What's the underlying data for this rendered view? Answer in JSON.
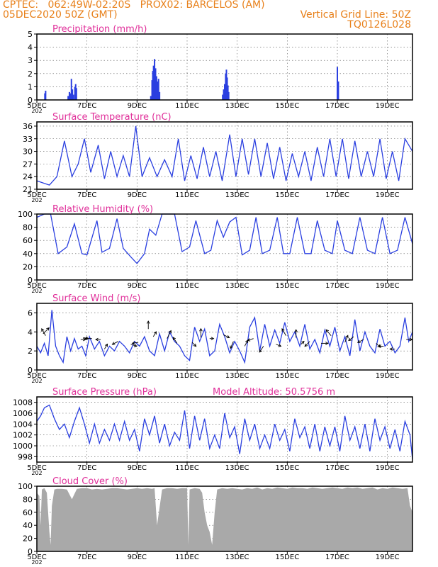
{
  "header": {
    "line1_left": "CPTEC:   062:49W-02:20S   PROX02: BARCELOS (AM)",
    "line2_left": "05DEC2020 50Z (GMT)",
    "line2_right": "Vertical Grid Line: 50Z",
    "line3_right": "TQ0126L028"
  },
  "colors": {
    "header": "#e8801a",
    "title": "#e0309a",
    "line": "#2a3fe0",
    "cloud": "#a9a9a9"
  },
  "x_axis": {
    "start_day": 5,
    "end_day": 20,
    "tick_days": [
      5,
      7,
      9,
      11,
      13,
      15,
      17,
      19
    ],
    "tick_labels": [
      "5DEC",
      "7DEC",
      "9DEC",
      "11DEC",
      "13DEC",
      "15DEC",
      "17DEC",
      "19DEC"
    ],
    "year_fragment": "202"
  },
  "chart_data": [
    {
      "id": "precip",
      "type": "bar",
      "title": "Precipitation (mm/h)",
      "ylim": [
        0,
        5
      ],
      "yticks": [
        0,
        1,
        2,
        3,
        4,
        5
      ],
      "ytick_labels": [
        "0",
        "1",
        "2",
        "3",
        "4",
        "5"
      ],
      "bars": [
        [
          5.32,
          0.5
        ],
        [
          5.35,
          0.7
        ],
        [
          6.25,
          0.3
        ],
        [
          6.3,
          0.6
        ],
        [
          6.35,
          0.5
        ],
        [
          6.38,
          1.6
        ],
        [
          6.42,
          0.8
        ],
        [
          6.46,
          0.4
        ],
        [
          6.52,
          1.0
        ],
        [
          6.55,
          1.2
        ],
        [
          6.58,
          0.9
        ],
        [
          9.55,
          0.3
        ],
        [
          9.6,
          1.5
        ],
        [
          9.63,
          2.2
        ],
        [
          9.66,
          2.6
        ],
        [
          9.7,
          3.1
        ],
        [
          9.74,
          2.4
        ],
        [
          9.78,
          1.8
        ],
        [
          9.82,
          1.4
        ],
        [
          9.86,
          1.6
        ],
        [
          9.9,
          0.6
        ],
        [
          12.42,
          0.4
        ],
        [
          12.46,
          0.8
        ],
        [
          12.5,
          1.2
        ],
        [
          12.54,
          2.0
        ],
        [
          12.57,
          2.3
        ],
        [
          12.6,
          1.7
        ],
        [
          12.63,
          1.1
        ],
        [
          12.66,
          0.6
        ],
        [
          17.0,
          2.5
        ],
        [
          17.04,
          1.4
        ]
      ]
    },
    {
      "id": "temp",
      "type": "line",
      "title": "Surface Temperature (nC)",
      "ylim": [
        21,
        37
      ],
      "yticks": [
        21,
        24,
        27,
        30,
        33,
        36
      ],
      "ytick_labels": [
        "21",
        "24",
        "27",
        "30",
        "33",
        "36"
      ],
      "x": [
        5,
        5.25,
        5.5,
        5.8,
        6.1,
        6.4,
        6.65,
        6.9,
        7.15,
        7.45,
        7.7,
        7.95,
        8.2,
        8.45,
        8.7,
        8.95,
        9.2,
        9.5,
        9.8,
        10.1,
        10.4,
        10.65,
        10.9,
        11.15,
        11.4,
        11.65,
        11.9,
        12.15,
        12.4,
        12.7,
        12.95,
        13.2,
        13.45,
        13.7,
        13.95,
        14.2,
        14.45,
        14.7,
        14.95,
        15.2,
        15.45,
        15.7,
        15.95,
        16.2,
        16.45,
        16.7,
        16.95,
        17.2,
        17.45,
        17.7,
        17.95,
        18.2,
        18.45,
        18.7,
        18.95,
        19.2,
        19.45,
        19.7,
        20
      ],
      "values": [
        23,
        22.5,
        22,
        24,
        32.5,
        24,
        27,
        33,
        25,
        31.5,
        23.5,
        30,
        24,
        29,
        24,
        36,
        24,
        28.5,
        24,
        28,
        24,
        33,
        23,
        29,
        23.5,
        31,
        24,
        30,
        23,
        34,
        24,
        33,
        24.5,
        33,
        24,
        32,
        23.5,
        31,
        23,
        29.5,
        24,
        30,
        23,
        31,
        24,
        33,
        24,
        33,
        23.5,
        32.5,
        24,
        30,
        24,
        33,
        23.5,
        30,
        23,
        33,
        30
      ]
    },
    {
      "id": "rh",
      "type": "line",
      "title": "Relative Humidity (%)",
      "ylim": [
        0,
        100
      ],
      "yticks": [
        0,
        20,
        40,
        60,
        80,
        100
      ],
      "ytick_labels": [
        "0",
        "20",
        "40",
        "60",
        "80",
        "100"
      ],
      "x": [
        5,
        5.3,
        5.55,
        5.85,
        6.2,
        6.5,
        6.8,
        7.0,
        7.4,
        7.6,
        7.9,
        8.2,
        8.45,
        8.75,
        9.0,
        9.3,
        9.5,
        9.75,
        10.0,
        10.25,
        10.5,
        10.8,
        11.1,
        11.35,
        11.7,
        11.95,
        12.2,
        12.45,
        12.7,
        12.95,
        13.2,
        13.5,
        13.75,
        14.0,
        14.3,
        14.6,
        14.85,
        15.1,
        15.4,
        15.7,
        15.95,
        16.2,
        16.5,
        16.8,
        17.0,
        17.3,
        17.6,
        17.9,
        18.2,
        18.5,
        18.8,
        19.1,
        19.4,
        19.7,
        20
      ],
      "values": [
        95,
        100,
        100,
        40,
        50,
        85,
        40,
        38,
        90,
        42,
        48,
        93,
        48,
        35,
        25,
        40,
        77,
        68,
        100,
        100,
        100,
        43,
        50,
        90,
        40,
        45,
        90,
        65,
        88,
        95,
        38,
        45,
        95,
        40,
        45,
        95,
        40,
        40,
        95,
        40,
        40,
        90,
        45,
        40,
        90,
        45,
        40,
        95,
        45,
        40,
        95,
        40,
        45,
        95,
        55
      ]
    },
    {
      "id": "wind",
      "type": "line",
      "title": "Surface Wind (m/s)",
      "ylim": [
        0,
        7
      ],
      "yticks": [
        0,
        2,
        4,
        6
      ],
      "ytick_labels": [
        "0",
        "2",
        "4",
        "6"
      ],
      "x": [
        5,
        5.15,
        5.3,
        5.45,
        5.6,
        5.75,
        5.9,
        6.05,
        6.2,
        6.35,
        6.5,
        6.65,
        6.8,
        6.95,
        7.1,
        7.3,
        7.5,
        7.7,
        7.9,
        8.1,
        8.3,
        8.5,
        8.7,
        8.9,
        9.1,
        9.3,
        9.5,
        9.7,
        9.9,
        10.1,
        10.3,
        10.5,
        10.7,
        10.9,
        11.1,
        11.3,
        11.5,
        11.7,
        11.9,
        12.1,
        12.3,
        12.5,
        12.7,
        12.9,
        13.1,
        13.3,
        13.5,
        13.7,
        13.9,
        14.1,
        14.3,
        14.5,
        14.7,
        14.9,
        15.1,
        15.3,
        15.5,
        15.7,
        15.9,
        16.1,
        16.3,
        16.5,
        16.7,
        16.9,
        17.1,
        17.3,
        17.5,
        17.7,
        17.9,
        18.1,
        18.3,
        18.5,
        18.7,
        18.9,
        19.1,
        19.3,
        19.5,
        19.7,
        19.85,
        20
      ],
      "values": [
        2.5,
        1.8,
        2.8,
        1.5,
        6.3,
        2.5,
        1.5,
        0.8,
        3.5,
        2.0,
        3.3,
        2.2,
        2.5,
        1.5,
        3.5,
        2.2,
        3.0,
        1.5,
        2.5,
        2.0,
        3.0,
        2.5,
        1.8,
        3.0,
        2.5,
        3.5,
        2.0,
        1.5,
        3.8,
        2.0,
        4.0,
        3.0,
        2.5,
        1.5,
        1.0,
        4.5,
        3.0,
        4.3,
        1.5,
        2.0,
        4.8,
        3.5,
        1.8,
        3.0,
        2.0,
        0.8,
        4.5,
        5.5,
        2.0,
        4.8,
        2.5,
        4.2,
        2.8,
        5.0,
        3.0,
        4.0,
        2.5,
        4.8,
        2.2,
        3.2,
        1.8,
        4.2,
        2.5,
        4.5,
        2.0,
        3.5,
        1.5,
        5.3,
        2.0,
        4.0,
        2.5,
        1.8,
        4.3,
        2.5,
        3.0,
        1.8,
        2.5,
        5.5,
        3.0,
        4.0
      ],
      "arrows": [
        [
          5.25,
          3.8,
          0.6,
          -0.6
        ],
        [
          5.35,
          3.6,
          -0.4,
          -0.7
        ],
        [
          6.75,
          3.2,
          0.5,
          0
        ],
        [
          6.85,
          3.4,
          0.5,
          0.1
        ],
        [
          7.2,
          3.3,
          -0.7,
          0
        ],
        [
          7.55,
          3.2,
          -0.5,
          0
        ],
        [
          7.7,
          2.2,
          0.3,
          -0.5
        ],
        [
          8.25,
          3.0,
          -0.6,
          0.3
        ],
        [
          8.75,
          2.7,
          0.6,
          0.2
        ],
        [
          9.05,
          2.9,
          -0.6,
          0.1
        ],
        [
          9.45,
          4.3,
          0,
          -0.8
        ],
        [
          9.65,
          3.5,
          0.3,
          -0.5
        ],
        [
          10.2,
          3.3,
          0.4,
          -0.8
        ],
        [
          10.6,
          2.8,
          -0.4,
          -0.6
        ],
        [
          11.2,
          2.9,
          0.4,
          0.4
        ],
        [
          11.55,
          3.4,
          0,
          -0.9
        ],
        [
          11.9,
          3.3,
          0.4,
          0
        ],
        [
          12.45,
          3.7,
          0.6,
          0.3
        ],
        [
          12.85,
          3.0,
          -0.3,
          0.7
        ],
        [
          13.3,
          2.5,
          0.3,
          -0.6
        ],
        [
          13.65,
          3.3,
          -0.6,
          0.2
        ],
        [
          14.05,
          2.5,
          -0.4,
          0.6
        ],
        [
          14.55,
          2.7,
          0.5,
          0.2
        ],
        [
          14.95,
          3.6,
          -0.4,
          -0.7
        ],
        [
          15.35,
          3.4,
          0,
          -0.8
        ],
        [
          15.55,
          2.7,
          0.3,
          -0.3
        ],
        [
          15.9,
          3.0,
          -0.5,
          0.5
        ],
        [
          16.35,
          2.8,
          0.7,
          0
        ],
        [
          16.75,
          3.6,
          -0.5,
          -0.6
        ],
        [
          17.3,
          2.9,
          0.3,
          -0.7
        ],
        [
          17.65,
          3.5,
          -0.5,
          0.4
        ],
        [
          18.05,
          3.2,
          -0.6,
          0.3
        ],
        [
          18.55,
          2.8,
          0.4,
          0.4
        ],
        [
          18.85,
          2.5,
          -0.5,
          0
        ],
        [
          19.3,
          2.2,
          -0.5,
          0
        ],
        [
          19.75,
          3.2,
          0.6,
          0
        ]
      ]
    },
    {
      "id": "pres",
      "type": "line",
      "title": "Surface Pressure (hPa)",
      "subtitle": "Model Altitude: 50.5756 m",
      "ylim": [
        997,
        1009
      ],
      "yticks": [
        998,
        1000,
        1002,
        1004,
        1006,
        1008
      ],
      "ytick_labels": [
        "998",
        "1000",
        "1002",
        "1004",
        "1006",
        "1008"
      ],
      "x": [
        5,
        5.15,
        5.3,
        5.5,
        5.7,
        5.9,
        6.1,
        6.3,
        6.5,
        6.7,
        6.9,
        7.1,
        7.3,
        7.5,
        7.7,
        7.9,
        8.1,
        8.3,
        8.5,
        8.7,
        8.9,
        9.1,
        9.3,
        9.5,
        9.7,
        9.9,
        10.1,
        10.3,
        10.5,
        10.7,
        10.9,
        11.1,
        11.3,
        11.5,
        11.7,
        11.9,
        12.1,
        12.3,
        12.5,
        12.7,
        12.9,
        13.1,
        13.3,
        13.5,
        13.7,
        13.9,
        14.1,
        14.3,
        14.5,
        14.7,
        14.9,
        15.1,
        15.3,
        15.5,
        15.7,
        15.9,
        16.1,
        16.3,
        16.5,
        16.7,
        16.9,
        17.1,
        17.3,
        17.5,
        17.7,
        17.9,
        18.1,
        18.3,
        18.5,
        18.7,
        18.9,
        19.1,
        19.3,
        19.5,
        19.7,
        19.9,
        20
      ],
      "values": [
        1004.5,
        1005.5,
        1007,
        1007.5,
        1005,
        1003,
        1004,
        1001.5,
        1004.5,
        1007,
        1004,
        1000.5,
        1004,
        1000.5,
        1003,
        1001,
        1004,
        1001,
        1004.5,
        1001,
        1003,
        999,
        1005,
        1002,
        1005.5,
        1000.5,
        1004,
        1000,
        1002.5,
        1001,
        1006.5,
        999.5,
        1005.5,
        1001,
        1005,
        999.5,
        1002,
        999.5,
        1006,
        1001.5,
        1003.5,
        998.5,
        1005,
        1001,
        1004,
        999.5,
        1002,
        999.5,
        1004,
        1001,
        1003,
        999,
        1005,
        1001.5,
        1003.5,
        999.5,
        1004,
        999,
        1003.5,
        1000,
        1003.5,
        999,
        1005.5,
        1001,
        1003.5,
        999.5,
        1004,
        999,
        1005,
        1001,
        1003.5,
        999.5,
        1003,
        999,
        1004.5,
        1002,
        997.5
      ]
    },
    {
      "id": "cloud",
      "type": "area",
      "title": "Cloud Cover (%)",
      "ylim": [
        0,
        100
      ],
      "yticks": [
        0,
        20,
        40,
        60,
        80,
        100
      ],
      "ytick_labels": [
        "0",
        "20",
        "40",
        "60",
        "80",
        "100"
      ],
      "x": [
        5,
        5.1,
        5.15,
        5.2,
        5.3,
        5.4,
        5.5,
        5.55,
        5.6,
        5.7,
        5.8,
        6.0,
        6.2,
        6.4,
        6.6,
        6.8,
        7.0,
        7.2,
        7.4,
        7.6,
        7.8,
        8.0,
        8.2,
        8.4,
        8.6,
        8.8,
        9.0,
        9.2,
        9.4,
        9.6,
        9.7,
        9.8,
        10.0,
        10.2,
        10.4,
        10.6,
        10.8,
        11.0,
        11.05,
        11.1,
        11.3,
        11.5,
        11.6,
        11.7,
        11.8,
        11.9,
        12.0,
        12.1,
        12.2,
        12.4,
        12.6,
        12.8,
        13.0,
        13.2,
        13.4,
        13.6,
        13.8,
        14.0,
        14.2,
        14.4,
        14.6,
        14.8,
        15.0,
        15.2,
        15.4,
        15.6,
        15.8,
        16.0,
        16.2,
        16.4,
        16.6,
        16.8,
        17.0,
        17.2,
        17.4,
        17.6,
        17.8,
        18.0,
        18.2,
        18.4,
        18.6,
        18.8,
        19.0,
        19.2,
        19.4,
        19.6,
        19.8,
        19.9,
        20
      ],
      "values": [
        90,
        85,
        40,
        95,
        97,
        90,
        30,
        10,
        70,
        95,
        96,
        96,
        95,
        80,
        96,
        97,
        97,
        95,
        96,
        95,
        96,
        97,
        97,
        96,
        95,
        96,
        97,
        96,
        97,
        96,
        97,
        40,
        95,
        97,
        97,
        96,
        97,
        97,
        10,
        95,
        97,
        96,
        90,
        60,
        40,
        30,
        10,
        60,
        95,
        97,
        96,
        97,
        96,
        95,
        97,
        96,
        98,
        95,
        97,
        96,
        98,
        97,
        96,
        98,
        97,
        97,
        96,
        98,
        97,
        96,
        97,
        98,
        97,
        96,
        98,
        97,
        98,
        96,
        97,
        98,
        95,
        97,
        96,
        98,
        97,
        96,
        97,
        70,
        60
      ]
    }
  ]
}
